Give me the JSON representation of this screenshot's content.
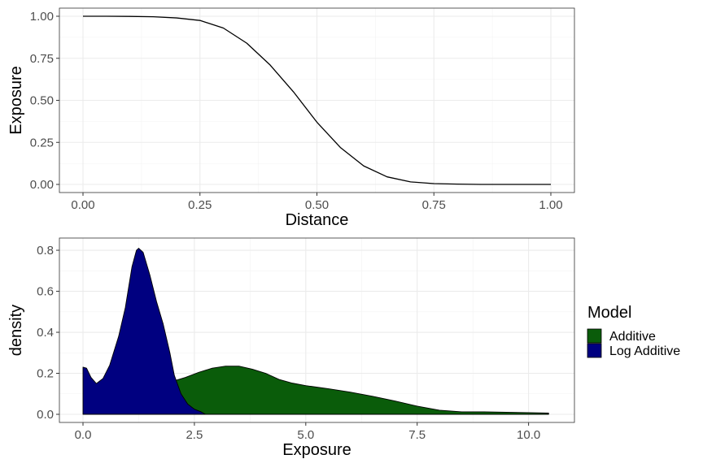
{
  "chart_data": [
    {
      "type": "line",
      "xlabel": "Distance",
      "ylabel": "Exposure",
      "xlim": [
        0,
        1
      ],
      "ylim": [
        0,
        1
      ],
      "x_ticks": [
        "0.00",
        "0.25",
        "0.50",
        "0.75",
        "1.00"
      ],
      "y_ticks": [
        "0.00",
        "0.25",
        "0.50",
        "0.75",
        "1.00"
      ],
      "grid": true,
      "series": [
        {
          "color": "#000000",
          "points": [
            [
              0.0,
              1.0
            ],
            [
              0.05,
              1.0
            ],
            [
              0.1,
              0.999
            ],
            [
              0.15,
              0.997
            ],
            [
              0.2,
              0.99
            ],
            [
              0.25,
              0.975
            ],
            [
              0.3,
              0.93
            ],
            [
              0.35,
              0.84
            ],
            [
              0.4,
              0.71
            ],
            [
              0.45,
              0.55
            ],
            [
              0.5,
              0.37
            ],
            [
              0.55,
              0.22
            ],
            [
              0.6,
              0.11
            ],
            [
              0.65,
              0.045
            ],
            [
              0.7,
              0.015
            ],
            [
              0.75,
              0.005
            ],
            [
              0.8,
              0.002
            ],
            [
              0.85,
              0.0
            ],
            [
              0.9,
              0.0
            ],
            [
              0.95,
              0.0
            ],
            [
              1.0,
              0.0
            ]
          ]
        }
      ]
    },
    {
      "type": "area",
      "xlabel": "Exposure",
      "ylabel": "density",
      "xlim": [
        0,
        10.5
      ],
      "ylim": [
        0,
        0.82
      ],
      "x_ticks": [
        "0.0",
        "2.5",
        "5.0",
        "7.5",
        "10.0"
      ],
      "y_ticks": [
        "0.0",
        "0.2",
        "0.4",
        "0.6",
        "0.8"
      ],
      "grid": true,
      "legend": {
        "title": "Model",
        "position": "right",
        "entries": [
          "Additive",
          "Log Additive"
        ]
      },
      "series": [
        {
          "name": "Additive",
          "color": "#0a5c0a",
          "points": [
            [
              1.8,
              0.12
            ],
            [
              2.0,
              0.16
            ],
            [
              2.3,
              0.18
            ],
            [
              2.6,
              0.205
            ],
            [
              2.9,
              0.225
            ],
            [
              3.2,
              0.235
            ],
            [
              3.5,
              0.235
            ],
            [
              3.8,
              0.22
            ],
            [
              4.1,
              0.2
            ],
            [
              4.4,
              0.17
            ],
            [
              4.7,
              0.152
            ],
            [
              5.0,
              0.14
            ],
            [
              5.5,
              0.125
            ],
            [
              6.0,
              0.108
            ],
            [
              6.5,
              0.088
            ],
            [
              7.0,
              0.065
            ],
            [
              7.5,
              0.04
            ],
            [
              8.0,
              0.02
            ],
            [
              8.5,
              0.012
            ],
            [
              9.0,
              0.012
            ],
            [
              9.5,
              0.01
            ],
            [
              10.0,
              0.008
            ],
            [
              10.45,
              0.006
            ]
          ]
        },
        {
          "name": "Log Additive",
          "color": "#000080",
          "points": [
            [
              0.0,
              0.23
            ],
            [
              0.08,
              0.225
            ],
            [
              0.18,
              0.18
            ],
            [
              0.3,
              0.15
            ],
            [
              0.45,
              0.175
            ],
            [
              0.6,
              0.24
            ],
            [
              0.8,
              0.38
            ],
            [
              0.95,
              0.52
            ],
            [
              1.1,
              0.72
            ],
            [
              1.2,
              0.8
            ],
            [
              1.25,
              0.81
            ],
            [
              1.35,
              0.79
            ],
            [
              1.5,
              0.68
            ],
            [
              1.65,
              0.55
            ],
            [
              1.8,
              0.44
            ],
            [
              1.95,
              0.3
            ],
            [
              2.05,
              0.19
            ],
            [
              2.2,
              0.1
            ],
            [
              2.35,
              0.05
            ],
            [
              2.5,
              0.025
            ],
            [
              2.65,
              0.012
            ],
            [
              2.75,
              0.0
            ]
          ]
        }
      ]
    }
  ]
}
